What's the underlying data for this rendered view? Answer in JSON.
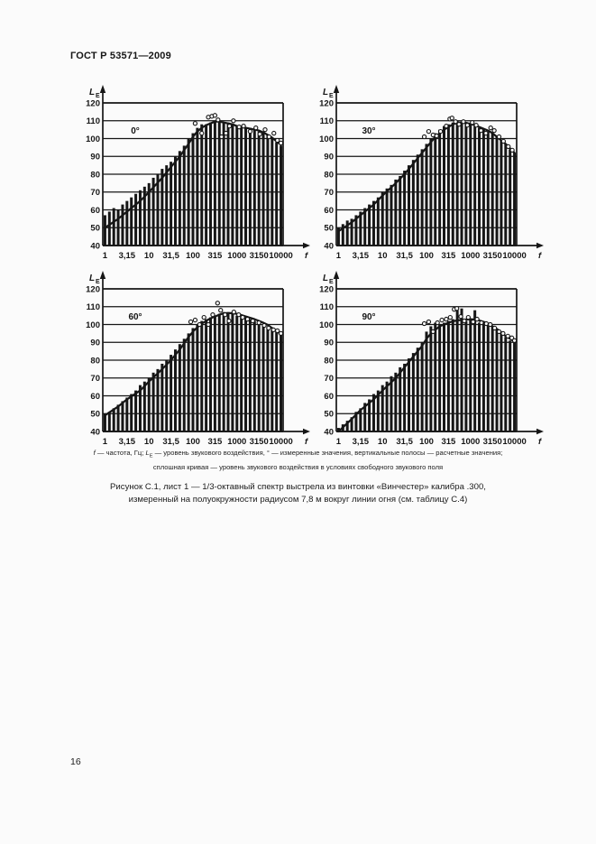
{
  "page": {
    "header": "ГОСТ Р 53571—2009",
    "page_number": "16",
    "background": "#fbfbfb",
    "ink": "#161616"
  },
  "figure": {
    "footnote": {
      "f_symbol": "f",
      "f_text": " — частота, Гц; ",
      "L_symbol": "L",
      "L_sub": "E",
      "rest": " — уровень звукового воздействия, ° — измеренные значения, вертикальные полосы — расчетные значения;",
      "line2": "сплошная кривая — уровень звукового воздействия в условиях свободного звукового поля"
    },
    "caption_line1": "Рисунок С.1, лист 1 — 1/3-октавный спектр выстрела из винтовки «Винчестер» калибра .300,",
    "caption_line2": "измеренный на полуокружности радиусом 7,8 м вокруг линии огня (см. таблицу С.4)"
  },
  "chart_data": [
    {
      "type": "bar",
      "title": "0°",
      "y_axis_label_main": "L",
      "y_axis_label_sub": "E",
      "x_axis_label": "f",
      "ylim": [
        40,
        120
      ],
      "yticks": [
        120,
        110,
        100,
        90,
        80,
        70,
        60,
        50,
        40
      ],
      "xticks": [
        {
          "label": "1",
          "band": 0
        },
        {
          "label": "3,15",
          "band": 5
        },
        {
          "label": "10",
          "band": 10
        },
        {
          "label": "31,5",
          "band": 15
        },
        {
          "label": "100",
          "band": 20
        },
        {
          "label": "315",
          "band": 25
        },
        {
          "label": "1000",
          "band": 30
        },
        {
          "label": "3150",
          "band": 35
        },
        {
          "label": "10000",
          "band": 40
        }
      ],
      "categories": [
        1,
        1.25,
        1.6,
        2,
        2.5,
        3.15,
        4,
        5,
        6.3,
        8,
        10,
        12.5,
        16,
        20,
        25,
        31.5,
        40,
        50,
        63,
        80,
        100,
        125,
        160,
        200,
        250,
        315,
        400,
        500,
        630,
        800,
        1000,
        1250,
        1600,
        2000,
        2500,
        3150,
        4000,
        5000,
        6300,
        8000,
        10000
      ],
      "bars": [
        57,
        59,
        61,
        60,
        63,
        65,
        67,
        69,
        71,
        73,
        75,
        78,
        80,
        83,
        85,
        87,
        90,
        93,
        96,
        100,
        103,
        106,
        108,
        108,
        109,
        110,
        110,
        109,
        109,
        108,
        107,
        107,
        106,
        106,
        105,
        104,
        104,
        102,
        100,
        98,
        96
      ],
      "curve": [
        [
          0,
          50
        ],
        [
          3,
          55
        ],
        [
          5,
          59
        ],
        [
          8,
          65
        ],
        [
          10,
          70
        ],
        [
          13,
          78
        ],
        [
          15,
          84
        ],
        [
          17,
          90
        ],
        [
          19,
          97
        ],
        [
          20,
          101
        ],
        [
          21,
          104
        ],
        [
          22,
          106
        ],
        [
          23,
          107.5
        ],
        [
          24,
          108.5
        ],
        [
          25,
          109.5
        ],
        [
          26,
          109.5
        ],
        [
          27,
          109
        ],
        [
          28,
          108.5
        ],
        [
          29,
          108
        ],
        [
          30,
          107
        ],
        [
          31,
          106.5
        ],
        [
          32,
          106
        ],
        [
          33,
          105.5
        ],
        [
          34,
          105
        ],
        [
          35,
          104.5
        ],
        [
          36,
          103.5
        ],
        [
          37,
          102
        ],
        [
          38,
          100.5
        ],
        [
          39,
          98.5
        ],
        [
          40,
          96.5
        ]
      ],
      "points": [
        [
          20.5,
          108.5
        ],
        [
          22,
          103
        ],
        [
          23.5,
          112
        ],
        [
          24.3,
          112.5
        ],
        [
          25,
          113
        ],
        [
          25.7,
          110.5
        ],
        [
          26.5,
          101
        ],
        [
          27.5,
          103
        ],
        [
          28.3,
          107
        ],
        [
          29.2,
          110
        ],
        [
          30.5,
          106.5
        ],
        [
          31.5,
          107
        ],
        [
          33,
          104
        ],
        [
          34.3,
          106
        ],
        [
          35.2,
          102.5
        ],
        [
          36.4,
          105
        ],
        [
          37.3,
          101
        ],
        [
          38.4,
          103
        ],
        [
          39.2,
          99
        ],
        [
          40,
          97.5
        ]
      ]
    },
    {
      "type": "bar",
      "title": "30°",
      "y_axis_label_main": "L",
      "y_axis_label_sub": "E",
      "x_axis_label": "f",
      "ylim": [
        40,
        120
      ],
      "yticks": [
        120,
        110,
        100,
        90,
        80,
        70,
        60,
        50,
        40
      ],
      "xticks": [
        {
          "label": "1",
          "band": 0
        },
        {
          "label": "3,15",
          "band": 5
        },
        {
          "label": "10",
          "band": 10
        },
        {
          "label": "31,5",
          "band": 15
        },
        {
          "label": "100",
          "band": 20
        },
        {
          "label": "315",
          "band": 25
        },
        {
          "label": "1000",
          "band": 30
        },
        {
          "label": "3150",
          "band": 35
        },
        {
          "label": "10000",
          "band": 40
        }
      ],
      "categories": [
        1,
        1.25,
        1.6,
        2,
        2.5,
        3.15,
        4,
        5,
        6.3,
        8,
        10,
        12.5,
        16,
        20,
        25,
        31.5,
        40,
        50,
        63,
        80,
        100,
        125,
        160,
        200,
        250,
        315,
        400,
        500,
        630,
        800,
        1000,
        1250,
        1600,
        2000,
        2500,
        3150,
        4000,
        5000,
        6300,
        8000,
        10000
      ],
      "bars": [
        50,
        52,
        54,
        55,
        57,
        59,
        61,
        63,
        65,
        67,
        70,
        72,
        74,
        77,
        79,
        82,
        85,
        88,
        91,
        94,
        97,
        100,
        103,
        105,
        107,
        108,
        109,
        110,
        109,
        109,
        108,
        107,
        106,
        105,
        104,
        103,
        101,
        99,
        97,
        94,
        92
      ],
      "curve": [
        [
          0,
          48
        ],
        [
          3,
          53
        ],
        [
          5,
          57
        ],
        [
          8,
          63
        ],
        [
          10,
          68
        ],
        [
          13,
          75
        ],
        [
          15,
          80
        ],
        [
          17,
          86
        ],
        [
          19,
          92
        ],
        [
          20,
          95
        ],
        [
          21,
          98
        ],
        [
          22,
          101
        ],
        [
          23,
          103
        ],
        [
          24,
          105
        ],
        [
          25,
          106.5
        ],
        [
          26,
          108
        ],
        [
          27,
          108.8
        ],
        [
          28,
          109
        ],
        [
          29,
          108.8
        ],
        [
          30,
          108.2
        ],
        [
          31,
          107.5
        ],
        [
          32,
          106.5
        ],
        [
          33,
          105.5
        ],
        [
          34,
          104.5
        ],
        [
          35,
          103
        ],
        [
          36,
          101
        ],
        [
          37,
          99
        ],
        [
          38,
          97
        ],
        [
          39,
          94.5
        ],
        [
          40,
          92
        ]
      ],
      "points": [
        [
          19.5,
          101
        ],
        [
          20.5,
          104
        ],
        [
          21.5,
          102
        ],
        [
          22.3,
          101.5
        ],
        [
          23.2,
          104
        ],
        [
          24.5,
          107
        ],
        [
          25.3,
          111
        ],
        [
          25.8,
          111.5
        ],
        [
          26.6,
          109.5
        ],
        [
          27.4,
          108
        ],
        [
          28.4,
          109.5
        ],
        [
          29.3,
          107.5
        ],
        [
          30.4,
          109
        ],
        [
          31.3,
          107.5
        ],
        [
          32.4,
          104.5
        ],
        [
          33.5,
          103
        ],
        [
          34.6,
          106
        ],
        [
          35.4,
          104.5
        ],
        [
          36.5,
          101
        ],
        [
          37.5,
          98.5
        ],
        [
          38.6,
          95.5
        ],
        [
          39.5,
          93.5
        ]
      ]
    },
    {
      "type": "bar",
      "title": "60°",
      "y_axis_label_main": "L",
      "y_axis_label_sub": "E",
      "x_axis_label": "f",
      "ylim": [
        40,
        120
      ],
      "yticks": [
        120,
        110,
        100,
        90,
        80,
        70,
        60,
        50,
        40
      ],
      "xticks": [
        {
          "label": "1",
          "band": 0
        },
        {
          "label": "3,15",
          "band": 5
        },
        {
          "label": "10",
          "band": 10
        },
        {
          "label": "31,5",
          "band": 15
        },
        {
          "label": "100",
          "band": 20
        },
        {
          "label": "315",
          "band": 25
        },
        {
          "label": "1000",
          "band": 30
        },
        {
          "label": "3150",
          "band": 35
        },
        {
          "label": "10000",
          "band": 40
        }
      ],
      "categories": [
        1,
        1.25,
        1.6,
        2,
        2.5,
        3.15,
        4,
        5,
        6.3,
        8,
        10,
        12.5,
        16,
        20,
        25,
        31.5,
        40,
        50,
        63,
        80,
        100,
        125,
        160,
        200,
        250,
        315,
        400,
        500,
        630,
        800,
        1000,
        1250,
        1600,
        2000,
        2500,
        3150,
        4000,
        5000,
        6300,
        8000,
        10000
      ],
      "bars": [
        50,
        51,
        53,
        55,
        57,
        59,
        61,
        63,
        66,
        68,
        70,
        73,
        75,
        78,
        80,
        83,
        86,
        89,
        92,
        95,
        98,
        100,
        102,
        103,
        104,
        105,
        106,
        107,
        106,
        106,
        105,
        105,
        104,
        103,
        102,
        101,
        100,
        99,
        97,
        96,
        95
      ],
      "curve": [
        [
          0,
          49
        ],
        [
          3,
          54
        ],
        [
          5,
          58
        ],
        [
          8,
          63
        ],
        [
          10,
          68
        ],
        [
          13,
          75
        ],
        [
          15,
          80
        ],
        [
          17,
          86
        ],
        [
          19,
          93
        ],
        [
          20,
          96
        ],
        [
          21,
          98.5
        ],
        [
          22,
          100.5
        ],
        [
          23,
          102
        ],
        [
          24,
          103.5
        ],
        [
          25,
          104.5
        ],
        [
          26,
          105.5
        ],
        [
          27,
          106.3
        ],
        [
          28,
          106.5
        ],
        [
          29,
          106.3
        ],
        [
          30,
          106
        ],
        [
          31,
          105.3
        ],
        [
          32,
          104.5
        ],
        [
          33,
          103.8
        ],
        [
          34,
          103
        ],
        [
          35,
          102
        ],
        [
          36,
          101
        ],
        [
          37,
          99.8
        ],
        [
          38,
          98
        ],
        [
          39,
          96.5
        ],
        [
          40,
          94.5
        ]
      ],
      "points": [
        [
          19.5,
          101.5
        ],
        [
          20.5,
          102.5
        ],
        [
          21.5,
          100
        ],
        [
          22.5,
          104
        ],
        [
          23.5,
          100
        ],
        [
          24.5,
          105.5
        ],
        [
          25.6,
          112
        ],
        [
          26.3,
          108
        ],
        [
          27.3,
          105.5
        ],
        [
          28.2,
          102
        ],
        [
          29.3,
          107
        ],
        [
          30.4,
          105.5
        ],
        [
          31.3,
          104
        ],
        [
          32.4,
          103
        ],
        [
          33.6,
          102
        ],
        [
          35,
          101
        ],
        [
          36.2,
          99.5
        ],
        [
          37.2,
          98
        ],
        [
          38.3,
          97
        ],
        [
          39.2,
          96.5
        ],
        [
          40,
          95
        ]
      ]
    },
    {
      "type": "bar",
      "title": "90°",
      "y_axis_label_main": "L",
      "y_axis_label_sub": "E",
      "x_axis_label": "f",
      "ylim": [
        40,
        120
      ],
      "yticks": [
        120,
        110,
        100,
        90,
        80,
        70,
        60,
        50,
        40
      ],
      "xticks": [
        {
          "label": "1",
          "band": 0
        },
        {
          "label": "3,15",
          "band": 5
        },
        {
          "label": "10",
          "band": 10
        },
        {
          "label": "31,5",
          "band": 15
        },
        {
          "label": "100",
          "band": 20
        },
        {
          "label": "315",
          "band": 25
        },
        {
          "label": "1000",
          "band": 30
        },
        {
          "label": "3150",
          "band": 35
        },
        {
          "label": "10000",
          "band": 40
        }
      ],
      "categories": [
        1,
        1.25,
        1.6,
        2,
        2.5,
        3.15,
        4,
        5,
        6.3,
        8,
        10,
        12.5,
        16,
        20,
        25,
        31.5,
        40,
        50,
        63,
        80,
        100,
        125,
        160,
        200,
        250,
        315,
        400,
        500,
        630,
        800,
        1000,
        1250,
        1600,
        2000,
        2500,
        3150,
        4000,
        5000,
        6300,
        8000,
        10000
      ],
      "bars": [
        42,
        44,
        46,
        48,
        51,
        53,
        56,
        58,
        61,
        63,
        66,
        68,
        71,
        73,
        76,
        78,
        81,
        84,
        87,
        90,
        96,
        99,
        101,
        100,
        101,
        102,
        103,
        108,
        109,
        102,
        103,
        108,
        101,
        101,
        100,
        99,
        97,
        95,
        93,
        91,
        90
      ],
      "curve": [
        [
          0,
          40
        ],
        [
          3,
          47
        ],
        [
          5,
          52
        ],
        [
          8,
          58
        ],
        [
          10,
          63
        ],
        [
          13,
          70
        ],
        [
          15,
          76
        ],
        [
          17,
          82
        ],
        [
          19,
          88
        ],
        [
          20,
          92
        ],
        [
          21,
          95
        ],
        [
          22,
          97
        ],
        [
          23,
          99
        ],
        [
          24,
          100
        ],
        [
          25,
          101
        ],
        [
          26,
          101.8
        ],
        [
          27,
          102.3
        ],
        [
          28,
          102.6
        ],
        [
          29,
          102.8
        ],
        [
          30,
          103
        ],
        [
          31,
          102.8
        ],
        [
          32,
          102.3
        ],
        [
          33,
          101.5
        ],
        [
          34,
          100.5
        ],
        [
          35,
          99
        ],
        [
          36,
          97.5
        ],
        [
          37,
          95.5
        ],
        [
          38,
          93.5
        ],
        [
          39,
          92
        ],
        [
          40,
          90.5
        ]
      ],
      "points": [
        [
          19.5,
          100.5
        ],
        [
          20.5,
          101.5
        ],
        [
          21.5,
          96
        ],
        [
          22.5,
          101
        ],
        [
          23.5,
          102.5
        ],
        [
          24.5,
          103
        ],
        [
          25.4,
          104
        ],
        [
          26.3,
          108.5
        ],
        [
          26.9,
          109
        ],
        [
          27.8,
          104.5
        ],
        [
          28.6,
          102
        ],
        [
          29.5,
          104
        ],
        [
          30.6,
          101.5
        ],
        [
          31.5,
          103
        ],
        [
          32.5,
          101
        ],
        [
          33.6,
          100.5
        ],
        [
          34.5,
          100
        ],
        [
          35.5,
          98
        ],
        [
          36.5,
          96
        ],
        [
          37.4,
          95
        ],
        [
          38.5,
          93.5
        ],
        [
          39.4,
          92.5
        ],
        [
          40,
          91
        ]
      ]
    }
  ]
}
